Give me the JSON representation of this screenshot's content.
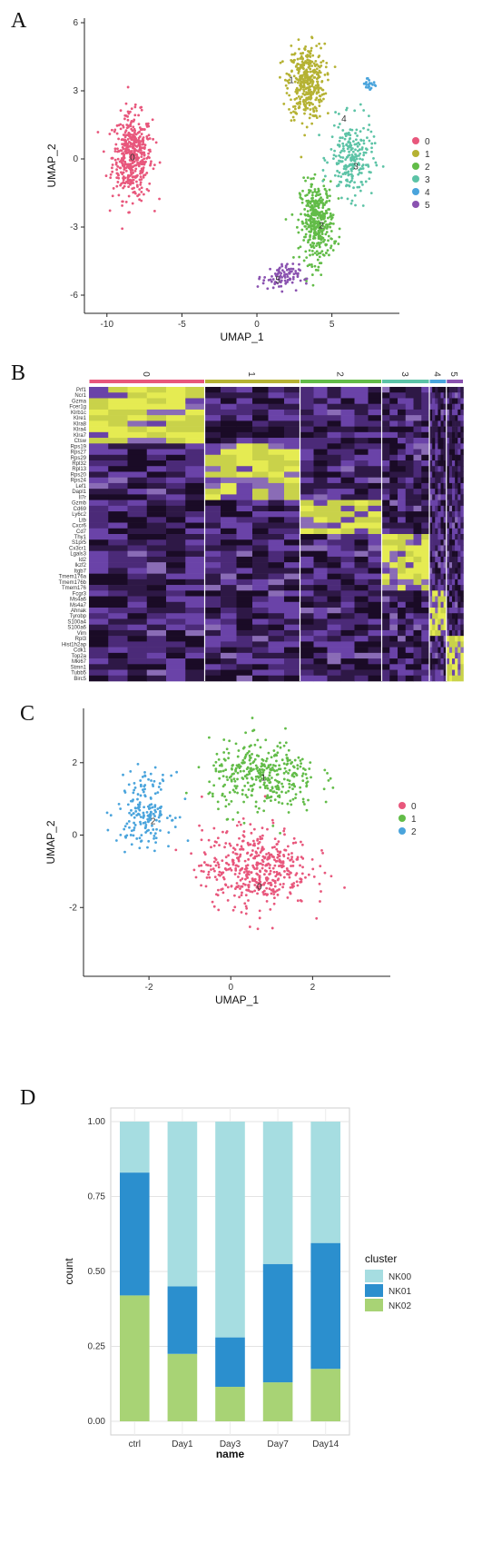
{
  "panels": {
    "A": "A",
    "B": "B",
    "C": "C",
    "D": "D"
  },
  "chart_data": [
    {
      "type": "scatter",
      "xlabel": "UMAP_1",
      "ylabel": "UMAP_2",
      "xlim": [
        -11.5,
        9.5
      ],
      "ylim": [
        -6.8,
        6.2
      ],
      "xticks": [
        -10,
        -5,
        0,
        5
      ],
      "yticks": [
        -6,
        -3,
        0,
        3,
        6
      ],
      "legend": [
        "0",
        "1",
        "2",
        "3",
        "4",
        "5"
      ],
      "colors": [
        "#e8577c",
        "#b5b233",
        "#62bc48",
        "#5cc3a6",
        "#4aa4dc",
        "#8a52b0"
      ],
      "clusters": [
        {
          "name": "0",
          "center": [
            -8.3,
            0.1
          ],
          "spread": [
            1.2,
            1.7
          ],
          "count": 460,
          "label_at": [
            -8.3,
            0.1
          ]
        },
        {
          "name": "1",
          "center": [
            3.3,
            3.4
          ],
          "spread": [
            1.1,
            1.5
          ],
          "count": 380,
          "label_at": [
            2.3,
            3.5
          ]
        },
        {
          "name": "2",
          "center": [
            4.0,
            -2.8
          ],
          "spread": [
            1.0,
            1.6
          ],
          "count": 380,
          "label_at": [
            4.3,
            -2.9
          ]
        },
        {
          "name": "3",
          "center": [
            6.3,
            0.0
          ],
          "spread": [
            1.3,
            1.5
          ],
          "count": 230,
          "label_at": [
            6.6,
            -0.3
          ]
        },
        {
          "name": "4",
          "center": [
            7.5,
            3.3
          ],
          "spread": [
            0.5,
            0.3
          ],
          "count": 22,
          "label_at": [
            5.8,
            1.8
          ]
        },
        {
          "name": "5",
          "center": [
            1.6,
            -5.2
          ],
          "spread": [
            1.1,
            0.5
          ],
          "count": 90,
          "label_at": [
            1.4,
            -5.3
          ]
        }
      ]
    },
    {
      "type": "heatmap",
      "columns": [
        "0",
        "1",
        "2",
        "3",
        "4",
        "5"
      ],
      "column_widths": [
        0.34,
        0.28,
        0.24,
        0.14,
        0.05,
        0.05
      ],
      "column_colors": [
        "#e8577c",
        "#b5b233",
        "#62bc48",
        "#5cc3a6",
        "#4aa4dc",
        "#8a52b0"
      ],
      "genes": [
        "Prf1",
        "Ncr1",
        "Gzma",
        "Fcer1g",
        "Klrb1c",
        "Klre1",
        "Klra8",
        "Klra4",
        "Klra7",
        "Ctsw",
        "Rps19",
        "Rps27",
        "Rps29",
        "Rpl32",
        "Rpl13",
        "Rps20",
        "Rps24",
        "Lef1",
        "Dapl1",
        "Il7r",
        "Gzmb",
        "Cd69",
        "Ly6c2",
        "Ltb",
        "Cxcr6",
        "Cd7",
        "Thy1",
        "S1pr5",
        "Cx3cr1",
        "Lgals3",
        "Id2",
        "Ikzf2",
        "Itgb7",
        "Tmem176a",
        "Tmem176b",
        "Tmem176",
        "Fcgr3",
        "Ms4a6",
        "Ms4a7",
        "Ahnak",
        "Tyrobp",
        "S100a4",
        "S100a6",
        "Vim",
        "Rpl3",
        "Hist1h2ap",
        "Cdk1",
        "Top2a",
        "Mki67",
        "Stmn1",
        "Tubb5",
        "Birc5"
      ]
    },
    {
      "type": "scatter",
      "xlabel": "UMAP_1",
      "ylabel": "UMAP_2",
      "xlim": [
        -3.6,
        3.9
      ],
      "ylim": [
        -3.9,
        3.5
      ],
      "xticks": [
        -2,
        0,
        2
      ],
      "yticks": [
        -2,
        0,
        2
      ],
      "legend": [
        "0",
        "1",
        "2"
      ],
      "colors": [
        "#e8577c",
        "#62bc48",
        "#4aa4dc"
      ],
      "clusters": [
        {
          "name": "0",
          "center": [
            0.6,
            -0.9
          ],
          "spread": [
            1.2,
            1.0
          ],
          "count": 470,
          "label_at": [
            0.7,
            -1.4
          ]
        },
        {
          "name": "1",
          "center": [
            0.8,
            1.6
          ],
          "spread": [
            1.2,
            0.9
          ],
          "count": 360,
          "label_at": [
            0.8,
            1.6
          ]
        },
        {
          "name": "2",
          "center": [
            -2.1,
            0.7
          ],
          "spread": [
            0.6,
            0.9
          ],
          "count": 180,
          "label_at": [
            -1.9,
            0.4
          ]
        }
      ]
    },
    {
      "type": "bar",
      "stacked": true,
      "categories": [
        "ctrl",
        "Day1",
        "Day3",
        "Day7",
        "Day14"
      ],
      "series": [
        {
          "name": "NK00",
          "values": [
            0.17,
            0.55,
            0.72,
            0.475,
            0.405
          ],
          "color": "#a6dde1"
        },
        {
          "name": "NK01",
          "values": [
            0.41,
            0.225,
            0.165,
            0.395,
            0.42
          ],
          "color": "#2b8fce"
        },
        {
          "name": "NK02",
          "values": [
            0.42,
            0.225,
            0.115,
            0.13,
            0.175
          ],
          "color": "#a8d375"
        }
      ],
      "xlabel": "name",
      "ylabel": "count",
      "ylim": [
        0,
        1
      ],
      "yticks": [
        "0.00",
        "0.25",
        "0.50",
        "0.75",
        "1.00"
      ],
      "legend_title": "cluster",
      "legend_placement": "right",
      "grid": true
    }
  ]
}
